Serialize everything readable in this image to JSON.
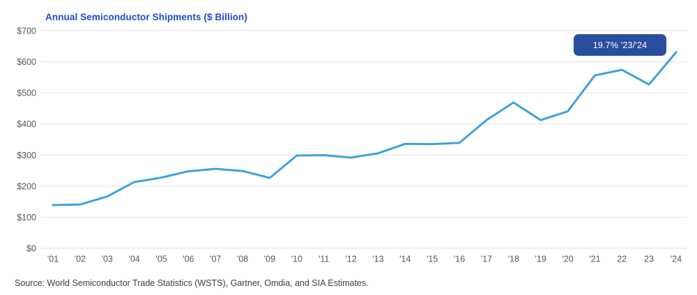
{
  "title": "Annual Semiconductor Shipments ($ Billion)",
  "source": "Source: World Semiconductor Trade Statistics (WSTS), Gartner, Omdia, and SIA Estimates.",
  "annotation": {
    "label": "19.7% '23/'24"
  },
  "colors": {
    "line": "#3EA2DC",
    "badge_bg": "#2A4DA0",
    "title_text": "#1E4CC7",
    "axis_text": "#575757",
    "gridline": "#E3E3E3",
    "source_text": "#3D3D3D"
  },
  "chart_data": {
    "type": "line",
    "title": "Annual Semiconductor Shipments ($ Billion)",
    "categories": [
      "'01",
      "'02",
      "'03",
      "'04",
      "'05",
      "'06",
      "'07",
      "'08",
      "'09",
      "'10",
      "'11",
      "'12",
      "'13",
      "'14",
      "'15",
      "'16",
      "'17",
      "'18",
      "'19",
      "'20",
      "'21",
      "22",
      "23",
      "'24"
    ],
    "values": [
      139.0,
      140.7,
      166.4,
      213.0,
      227.5,
      247.7,
      255.6,
      248.6,
      226.3,
      298.3,
      299.5,
      291.6,
      305.6,
      335.8,
      335.2,
      338.9,
      412.2,
      468.8,
      412.3,
      440.4,
      555.9,
      574.1,
      526.8,
      630.5
    ],
    "xlabel": "",
    "ylabel": "",
    "ylim": [
      0,
      700
    ],
    "y_ticks": [
      "$0",
      "$100",
      "$200",
      "$300",
      "$400",
      "$500",
      "$600",
      "$700"
    ],
    "grid": "horizontal",
    "legend": "none",
    "annotation": "19.7% '23/'24"
  }
}
